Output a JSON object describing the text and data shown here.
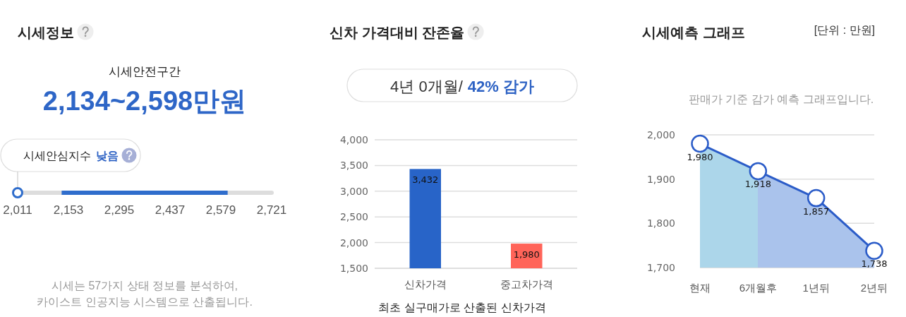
{
  "chart_data": [
    {
      "type": "bar",
      "orientation": "horizontal",
      "title": "시세정보",
      "subtitle": "시세안전구간",
      "categories": [
        null
      ],
      "base": [
        2134
      ],
      "values": [
        464
      ],
      "color": "#2f6dcc",
      "xlim": [
        2011,
        2721
      ],
      "xticks": [
        {
          "value": 2011,
          "label": "2,011"
        },
        {
          "value": 2153,
          "label": "2,153"
        },
        {
          "value": 2295,
          "label": "2,295"
        },
        {
          "value": 2437,
          "label": "2,437"
        },
        {
          "value": 2579,
          "label": "2,579"
        },
        {
          "value": 2721,
          "label": "2,721"
        }
      ],
      "annotations": [
        "2,134~2,598만원",
        "시세안심지수",
        "낮음",
        "시세는 57가지 상태 정보를 분석하여, 카이스트 인공지능 시스템으로 산출됩니다."
      ]
    },
    {
      "type": "bar",
      "title": "신차 가격대비 잔존율",
      "categories": [
        "신차가격",
        "중고차가격"
      ],
      "values": [
        3432,
        1980
      ],
      "colors": [
        "#2864c8",
        "#ff6459"
      ],
      "ylim": [
        1500,
        4000
      ],
      "yticks": [
        {
          "value": 1500,
          "label": "1,500"
        },
        {
          "value": 2000,
          "label": "2,000"
        },
        {
          "value": 2500,
          "label": "2,500"
        },
        {
          "value": 3000,
          "label": "3,000"
        },
        {
          "value": 3500,
          "label": "3,500"
        },
        {
          "value": 4000,
          "label": "4,000"
        }
      ],
      "grid": "y",
      "value_labels": [
        "3,432",
        "1,980"
      ],
      "xlabel": "최초 실구매가로 산출된 신차가격",
      "annotations": [
        "4년 0개월/",
        "42% 감가"
      ]
    },
    {
      "type": "area",
      "title": "시세예측 그래프",
      "subtitle": "판매가 기준 감가 예측 그래프입니다.",
      "annotations": [
        "[단위 : 만원]"
      ],
      "categories": [
        "현재",
        "6개월후",
        "1년뒤",
        "2년뒤"
      ],
      "series": [
        {
          "type": "area",
          "color": "#2b5cc8",
          "colors": [
            "#acd6ea",
            "#aac3ec",
            "#aac3ec",
            null
          ],
          "marker": "circle",
          "values": [
            1980,
            1918,
            1857,
            1738
          ],
          "value_labels": [
            "1,980",
            "1,918",
            "1,857",
            "1,738"
          ]
        }
      ],
      "ylim": [
        1700,
        2000
      ],
      "yticks": [
        {
          "value": 1700,
          "label": "1,700"
        },
        {
          "value": 1800,
          "label": "1,800"
        },
        {
          "value": 1900,
          "label": "1,900"
        },
        {
          "value": 2000,
          "label": "2,000"
        }
      ],
      "grid": "y"
    }
  ]
}
